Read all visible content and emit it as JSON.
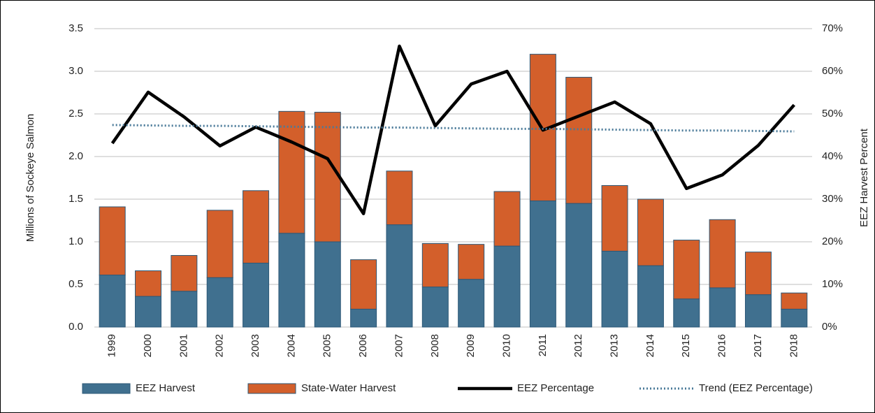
{
  "chart_data": {
    "type": "bar",
    "categories": [
      "1999",
      "2000",
      "2001",
      "2002",
      "2003",
      "2004",
      "2005",
      "2006",
      "2007",
      "2008",
      "2009",
      "2010",
      "2011",
      "2012",
      "2013",
      "2014",
      "2015",
      "2016",
      "2017",
      "2018"
    ],
    "stacked": true,
    "y_label": "Millions of Sockeye Salmon",
    "y2_label": "EEZ Harvest Percent",
    "ylim": [
      0,
      3.5
    ],
    "yticks": [
      {
        "value": 0,
        "label": "0.0"
      },
      0.5,
      {
        "value": 1,
        "label": "1.0"
      },
      1.5,
      {
        "value": 2,
        "label": "2.0"
      },
      2.5,
      {
        "value": 3,
        "label": "3.0"
      },
      3.5
    ],
    "y2lim": [
      0,
      70
    ],
    "y2ticks": [
      {
        "value": 0,
        "label": "0%"
      },
      {
        "value": 10,
        "label": "10%"
      },
      {
        "value": 20,
        "label": "20%"
      },
      {
        "value": 30,
        "label": "30%"
      },
      {
        "value": 40,
        "label": "40%"
      },
      {
        "value": 50,
        "label": "50%"
      },
      {
        "value": 60,
        "label": "60%"
      },
      {
        "value": 70,
        "label": "70%"
      }
    ],
    "grid": true,
    "legend": "bottom",
    "series": [
      {
        "name": "EEZ Harvest",
        "type": "bar",
        "color": "#40708f",
        "values": [
          0.61,
          0.36,
          0.42,
          0.58,
          0.75,
          1.1,
          1.0,
          0.21,
          1.2,
          0.47,
          0.56,
          0.95,
          1.48,
          1.45,
          0.89,
          0.72,
          0.33,
          0.46,
          0.38,
          0.21
        ]
      },
      {
        "name": "State-Water Harvest",
        "type": "bar",
        "color": "#d35f2b",
        "values": [
          0.8,
          0.3,
          0.42,
          0.79,
          0.85,
          1.43,
          1.52,
          0.58,
          0.63,
          0.51,
          0.41,
          0.64,
          1.72,
          1.48,
          0.77,
          0.78,
          0.69,
          0.8,
          0.5,
          0.19
        ]
      },
      {
        "name": "EEZ Percentage",
        "type": "line",
        "axis": "y2",
        "color": "#000000",
        "values": [
          43.1,
          55.1,
          49.3,
          42.5,
          46.9,
          43.4,
          39.5,
          26.6,
          65.9,
          47.2,
          57.0,
          60.0,
          46.2,
          49.5,
          52.8,
          47.7,
          32.5,
          35.7,
          42.6,
          52.1
        ]
      },
      {
        "name": "Trend (EEZ Percentage)",
        "type": "dotted",
        "axis": "y2",
        "color": "#4a7a99",
        "values": [
          47.4,
          47.3,
          47.2,
          47.2,
          47.1,
          47.0,
          46.9,
          46.8,
          46.8,
          46.7,
          46.6,
          46.5,
          46.5,
          46.4,
          46.3,
          46.2,
          46.1,
          46.1,
          46.0,
          45.9
        ]
      }
    ]
  }
}
